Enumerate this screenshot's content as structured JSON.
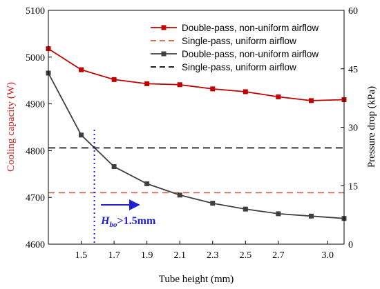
{
  "chart_data": {
    "type": "line",
    "xlabel": "Tube height (mm)",
    "ylabel_left": "Cooling capacity (W)",
    "ylabel_right": "Pressure drop (kPa)",
    "xlim": [
      1.3,
      3.1
    ],
    "ylim_left": [
      4600,
      5100
    ],
    "ylim_right": [
      0,
      60
    ],
    "x_ticks": [
      1.5,
      1.7,
      1.9,
      2.1,
      2.3,
      2.5,
      2.7,
      3.0
    ],
    "x_tick_labels": [
      "1.5",
      "1.7",
      "1.9",
      "2.1",
      "2.3",
      "2.5",
      "2.7",
      "3.0"
    ],
    "y_left_ticks": [
      4600,
      4700,
      4800,
      4900,
      5000,
      5100
    ],
    "y_left_tick_labels": [
      "4600",
      "4700",
      "4800",
      "4900",
      "5000",
      "5100"
    ],
    "y_right_ticks": [
      0,
      15,
      30,
      45,
      60
    ],
    "y_right_tick_labels": [
      "0",
      "15",
      "30",
      "45",
      "60"
    ],
    "legend_position": "top-right",
    "colors": {
      "cooling": "#c00000",
      "cooling_ref": "#c8643c",
      "pressure": "#404040",
      "pressure_ref": "#000000",
      "left_axis": "#cc2222",
      "marker_line": "#1f1fd6"
    },
    "series": [
      {
        "name": "Double-pass, non-uniform airflow",
        "axis": "left",
        "style": "solid-square",
        "x": [
          1.3,
          1.5,
          1.7,
          1.9,
          2.1,
          2.3,
          2.5,
          2.7,
          2.9,
          3.1
        ],
        "y": [
          5018,
          4973,
          4952,
          4943,
          4941,
          4932,
          4926,
          4915,
          4907,
          4909
        ]
      },
      {
        "name": "Single-pass, uniform airflow",
        "axis": "left",
        "style": "dashed",
        "x": [
          1.3,
          3.1
        ],
        "y": [
          4710,
          4710
        ]
      },
      {
        "name": "Double-pass, non-uniform airflow",
        "axis": "right",
        "style": "solid-square",
        "x": [
          1.3,
          1.5,
          1.7,
          1.9,
          2.1,
          2.3,
          2.5,
          2.7,
          2.9,
          3.1
        ],
        "y": [
          43.9,
          28.0,
          19.9,
          15.5,
          12.6,
          10.5,
          9.0,
          7.8,
          7.2,
          6.6
        ]
      },
      {
        "name": "Single-pass, uniform airflow",
        "axis": "right",
        "style": "dashed",
        "x": [
          1.3,
          3.1
        ],
        "y": [
          24.7,
          24.7
        ]
      }
    ],
    "annotations": {
      "vline_x": 1.58,
      "label_main": "H",
      "label_sub": "bo",
      "label_rest": ">1.5mm",
      "arrow_from_x": 1.62,
      "arrow_to_x": 1.85,
      "arrow_y_left": 4684,
      "label_x": 1.62,
      "label_y_left": 4643
    }
  }
}
